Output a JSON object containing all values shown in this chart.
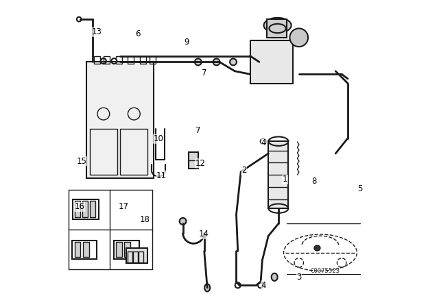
{
  "background_color": "#ffffff",
  "line_color": "#1a1a1a",
  "label_color": "#000000",
  "watermark": "C0075523",
  "figsize": [
    6.4,
    4.48
  ],
  "dpi": 100,
  "lw_main": 1.5,
  "lw_pipe": 2.0,
  "lw_thin": 1.0
}
